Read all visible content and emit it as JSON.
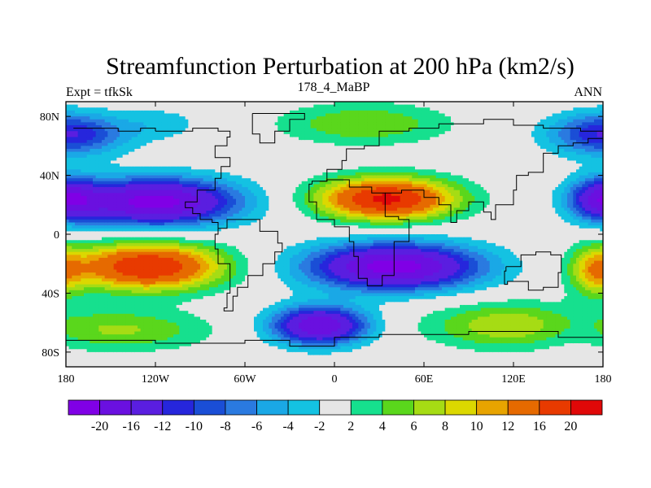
{
  "chart_data": {
    "type": "heatmap",
    "title": "Streamfunction Perturbation at 200 hPa (km2/s)",
    "left_label": "Expt = tfkSk",
    "center_label": "178_4_MaBP",
    "right_label": "ANN",
    "x_ticks": [
      {
        "label": "180",
        "lon": -180
      },
      {
        "label": "120W",
        "lon": -120
      },
      {
        "label": "60W",
        "lon": -60
      },
      {
        "label": "0",
        "lon": 0
      },
      {
        "label": "60E",
        "lon": 60
      },
      {
        "label": "120E",
        "lon": 120
      },
      {
        "label": "180",
        "lon": 180
      }
    ],
    "y_ticks": [
      {
        "label": "80N",
        "lat": 80
      },
      {
        "label": "40N",
        "lat": 40
      },
      {
        "label": "0",
        "lat": 0
      },
      {
        "label": "40S",
        "lat": -40
      },
      {
        "label": "80S",
        "lat": -80
      }
    ],
    "xlim": [
      -180,
      180
    ],
    "ylim": [
      -90,
      90
    ],
    "levels": [
      -20,
      -16,
      -12,
      -10,
      -8,
      -6,
      -4,
      -2,
      2,
      4,
      6,
      8,
      10,
      12,
      16,
      20
    ],
    "colors": [
      "#8000e6",
      "#6a10e0",
      "#5a1ee0",
      "#2626dc",
      "#1a4ed6",
      "#2a7ae0",
      "#1aa8e6",
      "#14c2e2",
      "#e6e6e6",
      "#16e08e",
      "#5ad71c",
      "#a6dc14",
      "#dcd800",
      "#e8a400",
      "#e66a00",
      "#e83a00",
      "#e00808"
    ],
    "field_components": [
      {
        "lon": -120,
        "lat": 22,
        "amp": -22,
        "slon": 38,
        "slat": 11
      },
      {
        "lon": -170,
        "lat": 68,
        "amp": -6,
        "slon": 25,
        "slat": 10
      },
      {
        "lon": -115,
        "lat": 75,
        "amp": -3,
        "slon": 20,
        "slat": 8
      },
      {
        "lon": 20,
        "lat": 75,
        "amp": 6,
        "slon": 40,
        "slat": 10
      },
      {
        "lon": 175,
        "lat": 68,
        "amp": -7,
        "slon": 25,
        "slat": 10
      },
      {
        "lon": 180,
        "lat": 24,
        "amp": -15,
        "slon": 15,
        "slat": 10
      },
      {
        "lon": 35,
        "lat": 24,
        "amp": 21,
        "slon": 32,
        "slat": 10
      },
      {
        "lon": -125,
        "lat": -22,
        "amp": 20,
        "slon": 35,
        "slat": 11
      },
      {
        "lon": -140,
        "lat": -65,
        "amp": 6,
        "slon": 40,
        "slat": 10
      },
      {
        "lon": 40,
        "lat": -22,
        "amp": -22,
        "slon": 40,
        "slat": 11
      },
      {
        "lon": -10,
        "lat": -62,
        "amp": -20,
        "slon": 22,
        "slat": 9
      },
      {
        "lon": 120,
        "lat": -62,
        "amp": 8,
        "slon": 40,
        "slat": 11
      },
      {
        "lon": 175,
        "lat": -25,
        "amp": 9,
        "slon": 12,
        "slat": 12
      },
      {
        "lon": 160,
        "lat": -65,
        "amp": -3,
        "slon": 20,
        "slat": 10
      }
    ],
    "colorbar_labels": [
      "-20",
      "-16",
      "-12",
      "-10",
      "-8",
      "-6",
      "-4",
      "-2",
      "2",
      "4",
      "6",
      "8",
      "10",
      "12",
      "16",
      "20"
    ],
    "coastlines": [
      [
        [
          -120,
          70
        ],
        [
          -95,
          72
        ],
        [
          -78,
          70
        ],
        [
          -70,
          66
        ],
        [
          -72,
          60
        ],
        [
          -80,
          52
        ],
        [
          -70,
          46
        ],
        [
          -76,
          38
        ],
        [
          -80,
          30
        ],
        [
          -92,
          22
        ],
        [
          -100,
          18
        ],
        [
          -95,
          14
        ],
        [
          -90,
          10
        ],
        [
          -82,
          8
        ],
        [
          -78,
          4
        ]
      ],
      [
        [
          -78,
          4
        ],
        [
          -72,
          10
        ],
        [
          -62,
          10
        ],
        [
          -50,
          2
        ],
        [
          -38,
          -6
        ],
        [
          -35,
          -12
        ],
        [
          -40,
          -20
        ],
        [
          -48,
          -28
        ],
        [
          -58,
          -36
        ],
        [
          -65,
          -42
        ],
        [
          -68,
          -52
        ],
        [
          -74,
          -50
        ],
        [
          -72,
          -40
        ],
        [
          -70,
          -20
        ],
        [
          -78,
          -10
        ],
        [
          -80,
          0
        ],
        [
          -78,
          4
        ]
      ],
      [
        [
          -175,
          72
        ],
        [
          -145,
          70
        ],
        [
          -130,
          72
        ],
        [
          -120,
          70
        ]
      ],
      [
        [
          -55,
          82
        ],
        [
          -30,
          82
        ],
        [
          -20,
          78
        ],
        [
          -30,
          70
        ],
        [
          -40,
          62
        ],
        [
          -50,
          68
        ],
        [
          -55,
          76
        ],
        [
          -55,
          82
        ]
      ],
      [
        [
          -15,
          34
        ],
        [
          -17,
          22
        ],
        [
          -12,
          10
        ],
        [
          0,
          5
        ],
        [
          10,
          4
        ],
        [
          10,
          -5
        ],
        [
          13,
          -15
        ],
        [
          16,
          -30
        ],
        [
          22,
          -35
        ],
        [
          32,
          -28
        ],
        [
          40,
          -15
        ],
        [
          40,
          -5
        ],
        [
          50,
          10
        ],
        [
          43,
          12
        ],
        [
          34,
          28
        ],
        [
          25,
          32
        ],
        [
          10,
          37
        ],
        [
          -5,
          36
        ],
        [
          -15,
          34
        ]
      ],
      [
        [
          -10,
          36
        ],
        [
          -5,
          44
        ],
        [
          5,
          50
        ],
        [
          8,
          58
        ],
        [
          20,
          60
        ],
        [
          30,
          70
        ],
        [
          50,
          72
        ],
        [
          70,
          75
        ],
        [
          100,
          78
        ],
        [
          120,
          74
        ],
        [
          140,
          72
        ],
        [
          165,
          70
        ],
        [
          180,
          68
        ]
      ],
      [
        [
          34,
          28
        ],
        [
          45,
          30
        ],
        [
          60,
          25
        ],
        [
          70,
          20
        ],
        [
          78,
          8
        ],
        [
          82,
          16
        ],
        [
          90,
          22
        ],
        [
          100,
          15
        ],
        [
          105,
          10
        ],
        [
          108,
          20
        ],
        [
          120,
          30
        ],
        [
          122,
          40
        ],
        [
          130,
          42
        ],
        [
          140,
          55
        ],
        [
          150,
          60
        ],
        [
          160,
          62
        ],
        [
          170,
          65
        ],
        [
          180,
          68
        ]
      ],
      [
        [
          115,
          -22
        ],
        [
          125,
          -14
        ],
        [
          135,
          -12
        ],
        [
          145,
          -14
        ],
        [
          152,
          -26
        ],
        [
          150,
          -36
        ],
        [
          140,
          -38
        ],
        [
          130,
          -32
        ],
        [
          116,
          -34
        ],
        [
          114,
          -25
        ],
        [
          115,
          -22
        ]
      ],
      [
        [
          -180,
          -72
        ],
        [
          -120,
          -74
        ],
        [
          -60,
          -72
        ],
        [
          -30,
          -76
        ],
        [
          0,
          -70
        ],
        [
          30,
          -68
        ],
        [
          60,
          -68
        ],
        [
          90,
          -66
        ],
        [
          120,
          -66
        ],
        [
          150,
          -70
        ],
        [
          180,
          -72
        ]
      ]
    ]
  }
}
